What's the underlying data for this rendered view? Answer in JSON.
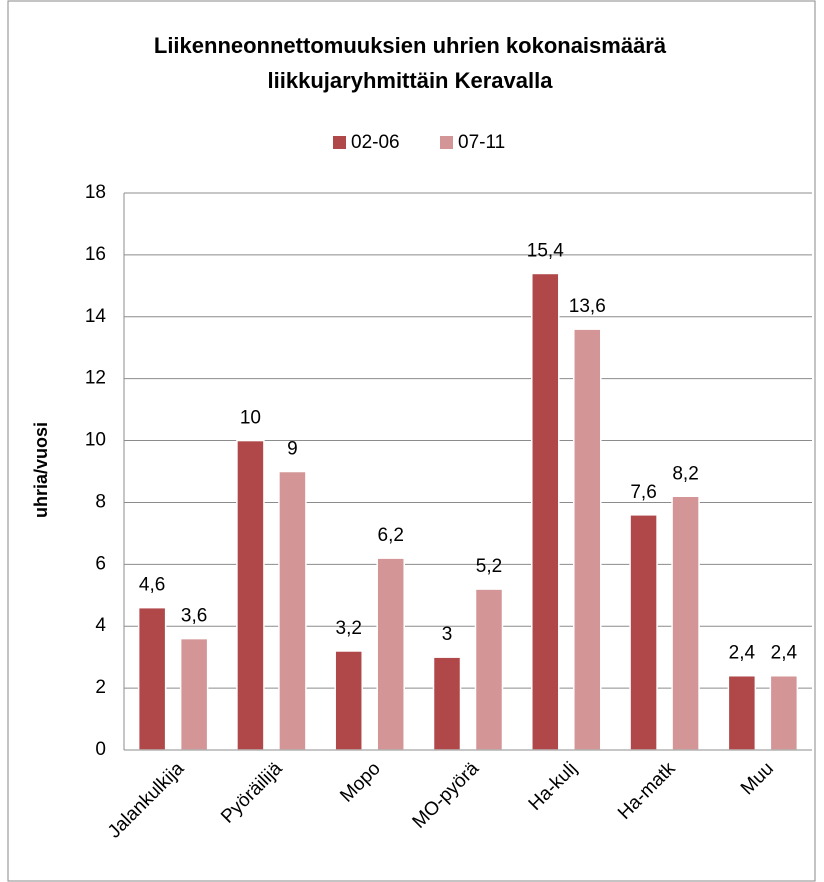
{
  "chart_data": {
    "type": "bar",
    "title": [
      "Liikenneonnettomuuksien uhrien kokonaismäärä",
      "liikkujaryhmittäin Keravalla"
    ],
    "y_label": "uhria/vuosi",
    "categories": [
      "Jalankulkija",
      "Pyöräilijä",
      "Mopo",
      "MO-pyörä",
      "Ha-kulj",
      "Ha-matk",
      "Muu"
    ],
    "series": [
      {
        "name": "02-06",
        "color": "#b0484a",
        "values": [
          4.6,
          10,
          3.2,
          3,
          15.4,
          7.6,
          2.4
        ],
        "value_labels": [
          "4,6",
          "10",
          "3,2",
          "3",
          "15,4",
          "7,6",
          "2,4"
        ]
      },
      {
        "name": "07-11",
        "color": "#d49596",
        "values": [
          3.6,
          9,
          6.2,
          5.2,
          13.6,
          8.2,
          2.4
        ],
        "value_labels": [
          "3,6",
          "9",
          "6,2",
          "5,2",
          "13,6",
          "8,2",
          "2,4"
        ]
      }
    ],
    "ylim": [
      0,
      18
    ],
    "yticks": [
      0,
      2,
      4,
      6,
      8,
      10,
      12,
      14,
      16,
      18
    ],
    "grid": true,
    "legend": "top"
  }
}
